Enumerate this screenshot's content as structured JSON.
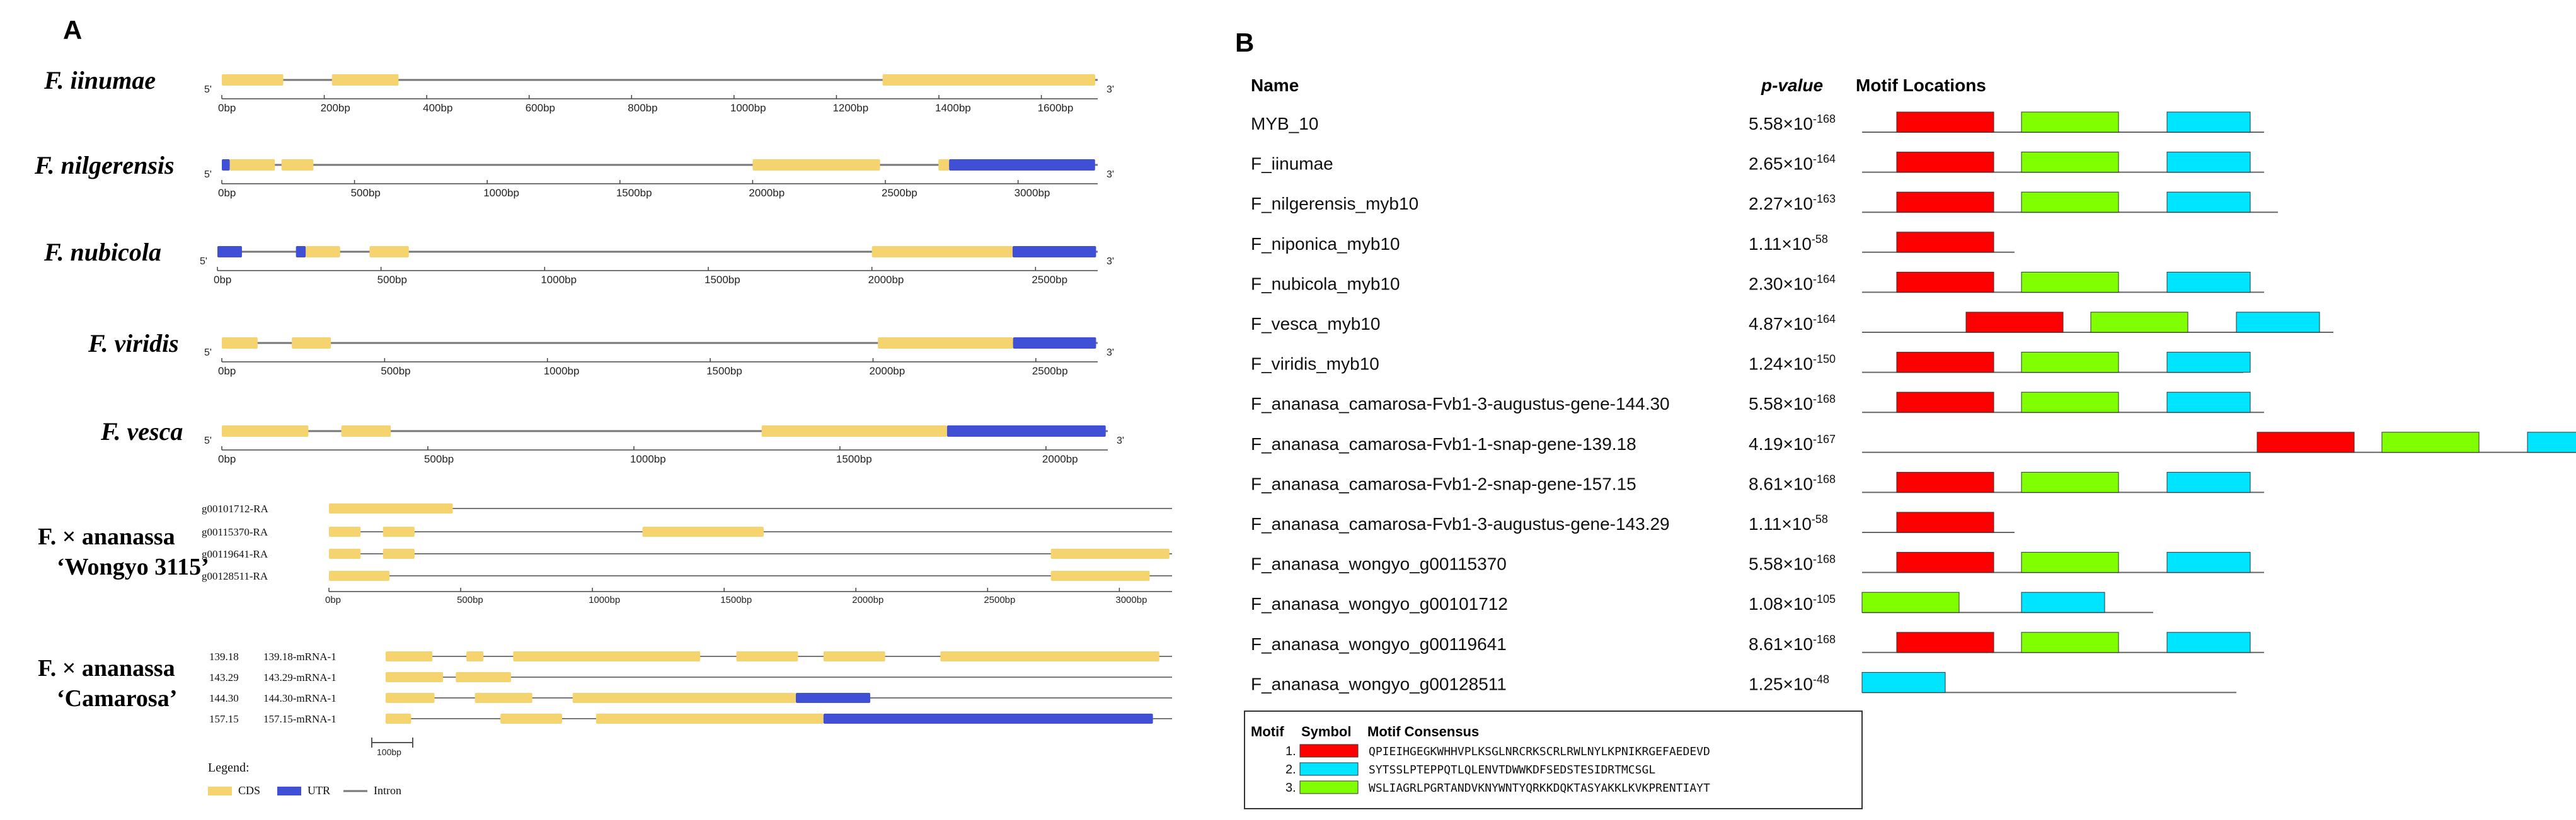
{
  "colors": {
    "cds": "#f5d36e",
    "utr": "#3f4fd6",
    "intron": "#777777",
    "motif1": "#ff0000",
    "motif2": "#00e5ff",
    "motif3": "#80ff00"
  },
  "panelA": {
    "label": "A",
    "species": [
      {
        "name": "F. iinumae",
        "ticks": [
          "0bp",
          "200bp",
          "400bp",
          "600bp",
          "800bp",
          "1000bp",
          "1200bp",
          "1400bp",
          "1600bp"
        ],
        "tickStep": 200,
        "maxLen": 1710,
        "segments": [
          {
            "t": "cds",
            "s": 0,
            "e": 120
          },
          {
            "t": "cds",
            "s": 215,
            "e": 345
          },
          {
            "t": "cds",
            "s": 1290,
            "e": 1705
          }
        ]
      },
      {
        "name": "F. nilgerensis",
        "ticks": [
          "0bp",
          "500bp",
          "1000bp",
          "1500bp",
          "2000bp",
          "2500bp",
          "3000bp"
        ],
        "tickStep": 500,
        "maxLen": 3300,
        "segments": [
          {
            "t": "utr",
            "s": 0,
            "e": 30
          },
          {
            "t": "cds",
            "s": 30,
            "e": 200
          },
          {
            "t": "cds",
            "s": 225,
            "e": 345
          },
          {
            "t": "cds",
            "s": 2000,
            "e": 2480
          },
          {
            "t": "cds",
            "s": 2700,
            "e": 2740
          },
          {
            "t": "utr",
            "s": 2740,
            "e": 3290
          }
        ]
      },
      {
        "name": "F. nubicola",
        "ticks": [
          "0bp",
          "500bp",
          "1000bp",
          "1500bp",
          "2000bp",
          "2500bp"
        ],
        "tickStep": 500,
        "maxLen": 2690,
        "segments": [
          {
            "t": "utr",
            "s": 0,
            "e": 75
          },
          {
            "t": "utr",
            "s": 240,
            "e": 270
          },
          {
            "t": "cds",
            "s": 270,
            "e": 375
          },
          {
            "t": "cds",
            "s": 465,
            "e": 585
          },
          {
            "t": "cds",
            "s": 2000,
            "e": 2430
          },
          {
            "t": "utr",
            "s": 2430,
            "e": 2685
          }
        ]
      },
      {
        "name": "F. viridis",
        "ticks": [
          "0bp",
          "500bp",
          "1000bp",
          "1500bp",
          "2000bp",
          "2500bp"
        ],
        "tickStep": 500,
        "maxLen": 2690,
        "segments": [
          {
            "t": "cds",
            "s": 0,
            "e": 110
          },
          {
            "t": "cds",
            "s": 215,
            "e": 335
          },
          {
            "t": "cds",
            "s": 2015,
            "e": 2430
          },
          {
            "t": "utr",
            "s": 2430,
            "e": 2685
          }
        ]
      },
      {
        "name": "F. vesca",
        "ticks": [
          "0bp",
          "500bp",
          "1000bp",
          "1500bp",
          "2000bp"
        ],
        "tickStep": 500,
        "maxLen": 2150,
        "segments": [
          {
            "t": "cds",
            "s": 0,
            "e": 210
          },
          {
            "t": "cds",
            "s": 290,
            "e": 410
          },
          {
            "t": "cds",
            "s": 1310,
            "e": 1760
          },
          {
            "t": "utr",
            "s": 1760,
            "e": 2145
          }
        ]
      }
    ],
    "wongyo": {
      "name": "F. × ananassa",
      "cultivar": "‘Wongyo 3115’",
      "ticks": [
        "0bp",
        "500bp",
        "1000bp",
        "1500bp",
        "2000bp",
        "2500bp",
        "3000bp"
      ],
      "tickStep": 500,
      "maxLen": 3200,
      "transcripts": [
        {
          "label": "g00101712-RA",
          "segments": [
            {
              "t": "cds",
              "s": 0,
              "e": 470
            }
          ]
        },
        {
          "label": "g00115370-RA",
          "segments": [
            {
              "t": "cds",
              "s": 0,
              "e": 120
            },
            {
              "t": "cds",
              "s": 205,
              "e": 325
            },
            {
              "t": "cds",
              "s": 1190,
              "e": 1650
            }
          ]
        },
        {
          "label": "g00119641-RA",
          "segments": [
            {
              "t": "cds",
              "s": 0,
              "e": 120
            },
            {
              "t": "cds",
              "s": 205,
              "e": 325
            },
            {
              "t": "cds",
              "s": 2740,
              "e": 3190
            }
          ]
        },
        {
          "label": "g00128511-RA",
          "segments": [
            {
              "t": "cds",
              "s": 0,
              "e": 230
            },
            {
              "t": "cds",
              "s": 2740,
              "e": 3115
            }
          ]
        }
      ]
    },
    "camarosa": {
      "name": "F. × ananassa",
      "cultivar": "‘Camarosa’",
      "scale_label": "100bp",
      "maxLen": 3700,
      "transcripts": [
        {
          "id": "139.18",
          "label": "139.18-mRNA-1",
          "segments": [
            {
              "t": "cds",
              "s": 0,
              "e": 220
            },
            {
              "t": "cds",
              "s": 380,
              "e": 460
            },
            {
              "t": "cds",
              "s": 600,
              "e": 1480
            },
            {
              "t": "cds",
              "s": 1650,
              "e": 1940
            },
            {
              "t": "cds",
              "s": 2060,
              "e": 2350
            },
            {
              "t": "cds",
              "s": 2610,
              "e": 3640
            }
          ]
        },
        {
          "id": "143.29",
          "label": "143.29-mRNA-1",
          "segments": [
            {
              "t": "cds",
              "s": 0,
              "e": 270
            },
            {
              "t": "cds",
              "s": 330,
              "e": 590
            }
          ]
        },
        {
          "id": "144.30",
          "label": "144.30-mRNA-1",
          "segments": [
            {
              "t": "cds",
              "s": 0,
              "e": 230
            },
            {
              "t": "cds",
              "s": 420,
              "e": 690
            },
            {
              "t": "cds",
              "s": 880,
              "e": 1930
            },
            {
              "t": "utr",
              "s": 1930,
              "e": 2280
            }
          ]
        },
        {
          "id": "157.15",
          "label": "157.15-mRNA-1",
          "segments": [
            {
              "t": "cds",
              "s": 0,
              "e": 120
            },
            {
              "t": "cds",
              "s": 540,
              "e": 830
            },
            {
              "t": "cds",
              "s": 990,
              "e": 2060
            },
            {
              "t": "utr",
              "s": 2060,
              "e": 3610
            }
          ]
        }
      ]
    },
    "legend": {
      "title": "Legend:",
      "cds": "CDS",
      "utr": "UTR",
      "intron": "Intron"
    },
    "end5": "5'",
    "end3": "3'"
  },
  "panelB": {
    "label": "B",
    "headers": {
      "name": "Name",
      "pvalue": "p-value",
      "motifs": "Motif Locations"
    },
    "rows": [
      {
        "name": "MYB_10",
        "mant": "5.58",
        "exp": "-168",
        "len": 0.58,
        "motifs": [
          [
            0.05,
            0.19,
            1
          ],
          [
            0.23,
            0.37,
            3
          ],
          [
            0.44,
            0.56,
            2
          ]
        ]
      },
      {
        "name": "F_iinumae",
        "mant": "2.65",
        "exp": "-164",
        "len": 0.58,
        "motifs": [
          [
            0.05,
            0.19,
            1
          ],
          [
            0.23,
            0.37,
            3
          ],
          [
            0.44,
            0.56,
            2
          ]
        ]
      },
      {
        "name": "F_nilgerensis_myb10",
        "mant": "2.27",
        "exp": "-163",
        "len": 0.6,
        "motifs": [
          [
            0.05,
            0.19,
            1
          ],
          [
            0.23,
            0.37,
            3
          ],
          [
            0.44,
            0.56,
            2
          ]
        ]
      },
      {
        "name": "F_niponica_myb10",
        "mant": "1.11",
        "exp": "-58",
        "len": 0.22,
        "motifs": [
          [
            0.05,
            0.19,
            1
          ]
        ]
      },
      {
        "name": "F_nubicola_myb10",
        "mant": "2.30",
        "exp": "-164",
        "len": 0.58,
        "motifs": [
          [
            0.05,
            0.19,
            1
          ],
          [
            0.23,
            0.37,
            3
          ],
          [
            0.44,
            0.56,
            2
          ]
        ]
      },
      {
        "name": "F_vesca_myb10",
        "mant": "4.87",
        "exp": "-164",
        "len": 0.68,
        "motifs": [
          [
            0.15,
            0.29,
            1
          ],
          [
            0.33,
            0.47,
            3
          ],
          [
            0.54,
            0.66,
            2
          ]
        ]
      },
      {
        "name": "F_viridis_myb10",
        "mant": "1.24",
        "exp": "-150",
        "len": 0.55,
        "motifs": [
          [
            0.05,
            0.19,
            1
          ],
          [
            0.23,
            0.37,
            3
          ],
          [
            0.44,
            0.56,
            2
          ]
        ]
      },
      {
        "name": "F_ananasa_camarosa-Fvb1-3-augustus-gene-144.30",
        "mant": "5.58",
        "exp": "-168",
        "len": 0.58,
        "motifs": [
          [
            0.05,
            0.19,
            1
          ],
          [
            0.23,
            0.37,
            3
          ],
          [
            0.44,
            0.56,
            2
          ]
        ]
      },
      {
        "name": "F_ananasa_camarosa-Fvb1-1-snap-gene-139.18",
        "mant": "4.19",
        "exp": "-167",
        "len": 1.13,
        "motifs": [
          [
            0.57,
            0.71,
            1
          ],
          [
            0.75,
            0.89,
            3
          ],
          [
            0.96,
            1.08,
            2
          ]
        ]
      },
      {
        "name": "F_ananasa_camarosa-Fvb1-2-snap-gene-157.15",
        "mant": "8.61",
        "exp": "-168",
        "len": 0.58,
        "motifs": [
          [
            0.05,
            0.19,
            1
          ],
          [
            0.23,
            0.37,
            3
          ],
          [
            0.44,
            0.56,
            2
          ]
        ]
      },
      {
        "name": "F_ananasa_camarosa-Fvb1-3-augustus-gene-143.29",
        "mant": "1.11",
        "exp": "-58",
        "len": 0.22,
        "motifs": [
          [
            0.05,
            0.19,
            1
          ]
        ]
      },
      {
        "name": "F_ananasa_wongyo_g00115370",
        "mant": "5.58",
        "exp": "-168",
        "len": 0.58,
        "motifs": [
          [
            0.05,
            0.19,
            1
          ],
          [
            0.23,
            0.37,
            3
          ],
          [
            0.44,
            0.56,
            2
          ]
        ]
      },
      {
        "name": "F_ananasa_wongyo_g00101712",
        "mant": "1.08",
        "exp": "-105",
        "len": 0.42,
        "motifs": [
          [
            0.0,
            0.14,
            3
          ],
          [
            0.23,
            0.35,
            2
          ]
        ]
      },
      {
        "name": "F_ananasa_wongyo_g00119641",
        "mant": "8.61",
        "exp": "-168",
        "len": 0.58,
        "motifs": [
          [
            0.05,
            0.19,
            1
          ],
          [
            0.23,
            0.37,
            3
          ],
          [
            0.44,
            0.56,
            2
          ]
        ]
      },
      {
        "name": "F_ananasa_wongyo_g00128511",
        "mant": "1.25",
        "exp": "-48",
        "len": 0.54,
        "motifs": [
          [
            0.0,
            0.12,
            2
          ]
        ]
      }
    ],
    "motifLegend": {
      "headers": {
        "motif": "Motif",
        "symbol": "Symbol",
        "consensus": "Motif Consensus"
      },
      "items": [
        {
          "num": "1.",
          "color": "#ff0000",
          "seq": "QPIEIHGEGKWHHVPLKSGLNRCRKSCRLRWLNYLKPNIKRGEFAEDEVD"
        },
        {
          "num": "2.",
          "color": "#00e5ff",
          "seq": "SYTSSLPTEPPQTLQLENVTDWWKDFSEDSTESIDRTMCSGL"
        },
        {
          "num": "3.",
          "color": "#80ff00",
          "seq": "WSLIAGRLPGRTANDVKNYWNTYQRKKDQKTASYAKKLKVKPRENTIAYT"
        }
      ]
    }
  }
}
